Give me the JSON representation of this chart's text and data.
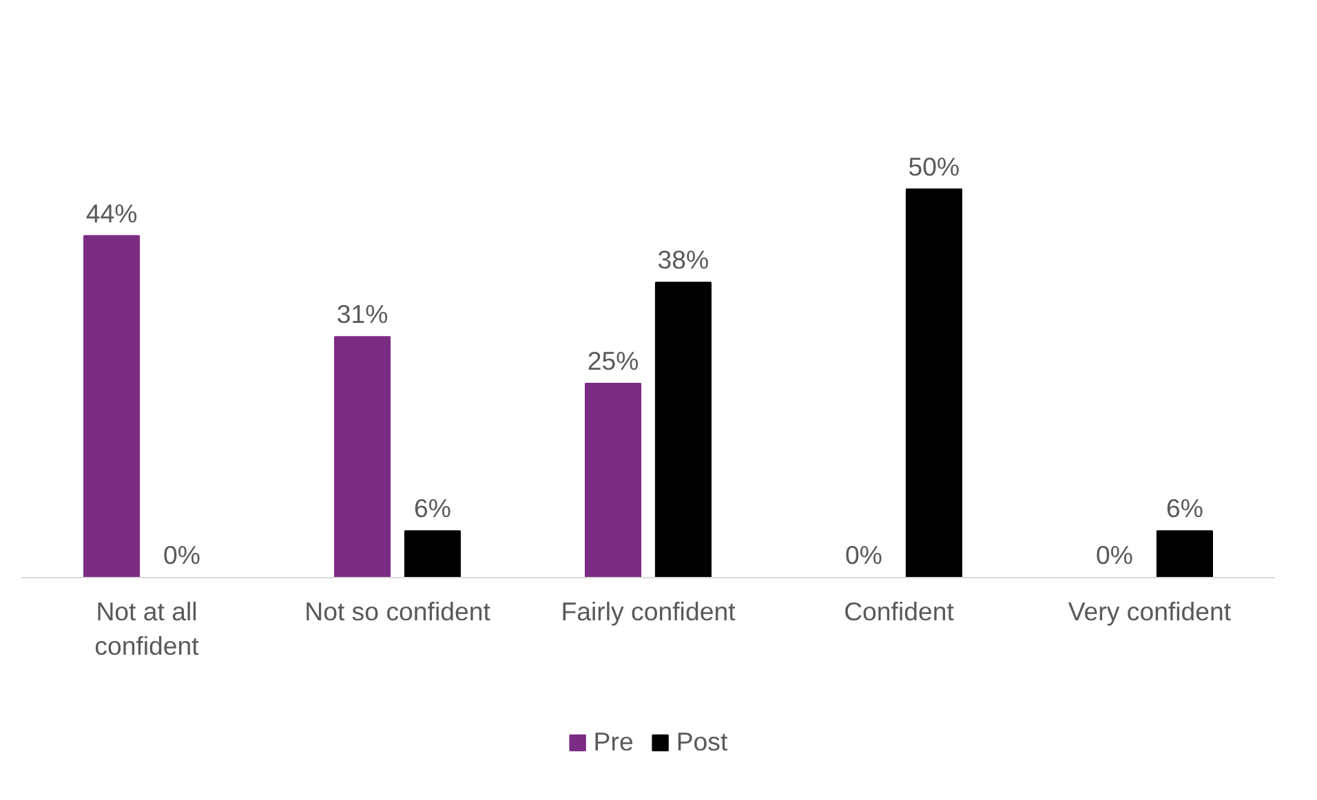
{
  "chart_data": {
    "type": "bar",
    "categories": [
      "Not at all confident",
      "Not so confident",
      "Fairly confident",
      "Confident",
      "Very confident"
    ],
    "series": [
      {
        "name": "Pre",
        "color": "#7b2c83",
        "values": [
          44,
          31,
          25,
          0,
          0
        ],
        "value_labels": [
          "44%",
          "31%",
          "25%",
          "0%",
          "0%"
        ]
      },
      {
        "name": "Post",
        "color": "#000000",
        "values": [
          0,
          6,
          38,
          50,
          6
        ],
        "value_labels": [
          "0%",
          "6%",
          "38%",
          "50%",
          "6%"
        ]
      }
    ],
    "grid": false,
    "legend": "bottom",
    "tick_labels": "x"
  }
}
